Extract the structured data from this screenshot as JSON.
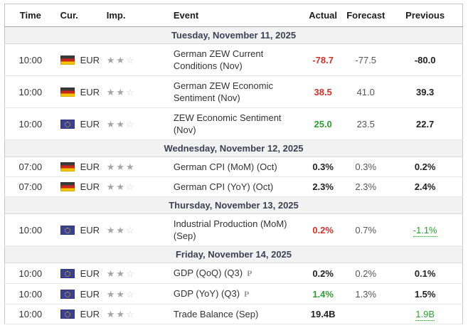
{
  "colors": {
    "positive": "#2e9e33",
    "negative": "#c8352b",
    "neutral": "#222222",
    "date_band_bg": "#f2f2f3",
    "date_band_text": "#3e4054"
  },
  "icons": {
    "star_filled": "★",
    "star_empty": "☆"
  },
  "table": {
    "headers": [
      "Time",
      "Cur.",
      "Imp.",
      "Event",
      "Actual",
      "Forecast",
      "Previous"
    ],
    "preliminary_label": "P",
    "groups": [
      {
        "date": "Tuesday, November 11, 2025",
        "rows": [
          {
            "time": "10:00",
            "currency": "EUR",
            "flag": "de",
            "importance": 2,
            "event": "German ZEW Current Conditions (Nov)",
            "preliminary": false,
            "actual": "-78.7",
            "actual_color": "negative",
            "forecast": "-77.5",
            "previous": "-80.0",
            "previous_revised": false
          },
          {
            "time": "10:00",
            "currency": "EUR",
            "flag": "de",
            "importance": 2,
            "event": "German ZEW Economic Sentiment (Nov)",
            "preliminary": false,
            "actual": "38.5",
            "actual_color": "negative",
            "forecast": "41.0",
            "previous": "39.3",
            "previous_revised": false
          },
          {
            "time": "10:00",
            "currency": "EUR",
            "flag": "eu",
            "importance": 2,
            "event": "ZEW Economic Sentiment (Nov)",
            "preliminary": false,
            "actual": "25.0",
            "actual_color": "positive",
            "forecast": "23.5",
            "previous": "22.7",
            "previous_revised": false
          }
        ]
      },
      {
        "date": "Wednesday, November 12, 2025",
        "rows": [
          {
            "time": "07:00",
            "currency": "EUR",
            "flag": "de",
            "importance": 3,
            "event": "German CPI (MoM) (Oct)",
            "preliminary": false,
            "actual": "0.3%",
            "actual_color": "neutral",
            "forecast": "0.3%",
            "previous": "0.2%",
            "previous_revised": false
          },
          {
            "time": "07:00",
            "currency": "EUR",
            "flag": "de",
            "importance": 2,
            "event": "German CPI (YoY) (Oct)",
            "preliminary": false,
            "actual": "2.3%",
            "actual_color": "neutral",
            "forecast": "2.3%",
            "previous": "2.4%",
            "previous_revised": false
          }
        ]
      },
      {
        "date": "Thursday, November 13, 2025",
        "rows": [
          {
            "time": "10:00",
            "currency": "EUR",
            "flag": "eu",
            "importance": 2,
            "event": "Industrial Production (MoM) (Sep)",
            "preliminary": false,
            "actual": "0.2%",
            "actual_color": "negative",
            "forecast": "0.7%",
            "previous": "-1.1%",
            "previous_revised": true
          }
        ]
      },
      {
        "date": "Friday, November 14, 2025",
        "rows": [
          {
            "time": "10:00",
            "currency": "EUR",
            "flag": "eu",
            "importance": 2,
            "event": "GDP (QoQ) (Q3)",
            "preliminary": true,
            "actual": "0.2%",
            "actual_color": "neutral",
            "forecast": "0.2%",
            "previous": "0.1%",
            "previous_revised": false
          },
          {
            "time": "10:00",
            "currency": "EUR",
            "flag": "eu",
            "importance": 2,
            "event": "GDP (YoY) (Q3)",
            "preliminary": true,
            "actual": "1.4%",
            "actual_color": "positive",
            "forecast": "1.3%",
            "previous": "1.5%",
            "previous_revised": false
          },
          {
            "time": "10:00",
            "currency": "EUR",
            "flag": "eu",
            "importance": 2,
            "event": "Trade Balance (Sep)",
            "preliminary": false,
            "actual": "19.4B",
            "actual_color": "neutral",
            "forecast": "",
            "previous": "1.9B",
            "previous_revised": true
          }
        ]
      }
    ]
  }
}
